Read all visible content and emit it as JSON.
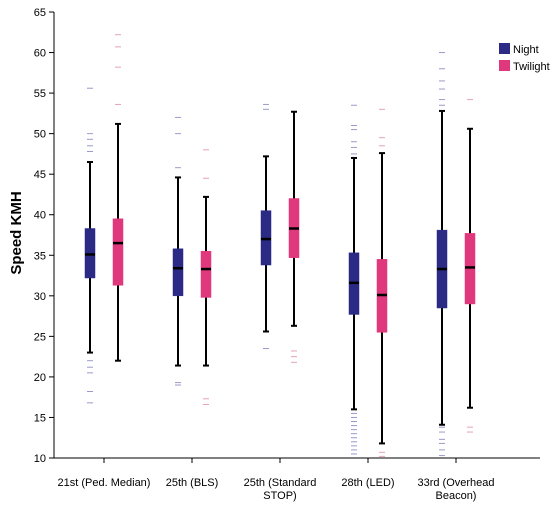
{
  "chart_data": {
    "type": "boxplot",
    "ylabel": "Speed KMH",
    "xlabel": "",
    "ylim": [
      10,
      65
    ],
    "yticks": [
      10,
      15,
      20,
      25,
      30,
      35,
      40,
      45,
      50,
      55,
      60,
      65
    ],
    "categories": [
      "21st (Ped. Median)",
      "25th (BLS)",
      "25th (Standard STOP)",
      "28th (LED)",
      "33rd  (Overhead Beacon)"
    ],
    "legend_position": "top-right",
    "grid": false,
    "series": [
      {
        "name": "Night",
        "color": "#2b2b86",
        "boxes": [
          {
            "min": 23.0,
            "q1": 32.2,
            "median": 35.1,
            "q3": 38.3,
            "max": 46.5,
            "outliers": [
              16.8,
              18.2,
              20.5,
              21.2,
              22.0,
              47.8,
              48.5,
              49.3,
              50.0,
              55.6
            ]
          },
          {
            "min": 21.4,
            "q1": 30.0,
            "median": 33.4,
            "q3": 35.8,
            "max": 44.6,
            "outliers": [
              19.0,
              19.3,
              45.8,
              50.0,
              52.0
            ]
          },
          {
            "min": 25.6,
            "q1": 33.8,
            "median": 37.0,
            "q3": 40.5,
            "max": 47.2,
            "outliers": [
              23.5,
              53.0,
              53.6
            ]
          },
          {
            "min": 16.0,
            "q1": 27.7,
            "median": 31.6,
            "q3": 35.3,
            "max": 47.0,
            "outliers": [
              10.5,
              11.0,
              11.5,
              12.0,
              12.5,
              13.0,
              13.5,
              14.0,
              14.5,
              15.0,
              15.5,
              47.5,
              48.3,
              49.0,
              50.5,
              51.0,
              53.5
            ]
          },
          {
            "min": 14.1,
            "q1": 28.5,
            "median": 33.3,
            "q3": 38.1,
            "max": 52.8,
            "outliers": [
              10.3,
              11.0,
              11.8,
              12.3,
              13.2,
              13.8,
              53.5,
              54.2,
              55.5,
              56.5,
              58.0,
              60.0
            ]
          }
        ]
      },
      {
        "name": "Twilight",
        "color": "#e0387c",
        "boxes": [
          {
            "min": 22.0,
            "q1": 31.3,
            "median": 36.5,
            "q3": 39.5,
            "max": 51.2,
            "outliers": [
              53.6,
              58.2,
              60.7,
              62.2
            ]
          },
          {
            "min": 21.4,
            "q1": 29.8,
            "median": 33.3,
            "q3": 35.5,
            "max": 42.2,
            "outliers": [
              16.6,
              17.3,
              44.5,
              48.0
            ]
          },
          {
            "min": 26.3,
            "q1": 34.7,
            "median": 38.3,
            "q3": 42.0,
            "max": 52.7,
            "outliers": [
              21.8,
              22.5,
              23.2
            ]
          },
          {
            "min": 11.8,
            "q1": 25.5,
            "median": 30.1,
            "q3": 34.5,
            "max": 47.6,
            "outliers": [
              10.2,
              10.7,
              48.5,
              49.5,
              53.0
            ]
          },
          {
            "min": 16.2,
            "q1": 29.0,
            "median": 33.5,
            "q3": 37.7,
            "max": 50.6,
            "outliers": [
              13.2,
              13.8,
              54.2
            ]
          }
        ]
      }
    ]
  }
}
